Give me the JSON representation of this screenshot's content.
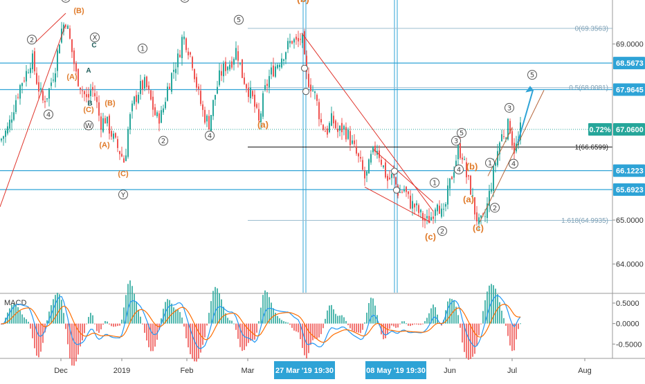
{
  "chart_data": [
    {
      "type": "candlestick",
      "title": "",
      "y_axis": {
        "ticks": [
          {
            "label": "69.0000",
            "v": 69.0
          },
          {
            "label": "65.0000",
            "v": 65.0
          },
          {
            "label": "64.0000",
            "v": 64.0
          }
        ],
        "ylim": [
          63.35,
          70.0
        ]
      },
      "x_axis": {
        "labels": [
          {
            "label": "Dec",
            "t": 88
          },
          {
            "label": "2019",
            "t": 176
          },
          {
            "label": "Feb",
            "t": 270
          },
          {
            "label": "Mar",
            "t": 358
          },
          {
            "label": "Jun",
            "t": 650
          },
          {
            "label": "Jul",
            "t": 740
          },
          {
            "label": "Aug",
            "t": 845
          }
        ],
        "highlighted": [
          {
            "label": "27 Mar '19   19:30",
            "t": 440
          },
          {
            "label": "08 May '19   19:30",
            "t": 572
          }
        ],
        "xlim": [
          0,
          885
        ]
      },
      "price_levels": [
        {
          "label": "68.5673",
          "v": 68.5673
        },
        {
          "label": "67.9645",
          "v": 67.9645
        },
        {
          "label": "66.1223",
          "v": 66.1223
        },
        {
          "label": "65.6923",
          "v": 65.6923
        }
      ],
      "current_price": {
        "label": "67.0600",
        "v": 67.06,
        "change": "0.72%"
      },
      "fib_levels": [
        {
          "label": "0(69.3563)",
          "v": 69.3563
        },
        {
          "label": "0.5(68.0081)",
          "v": 68.0081
        },
        {
          "label": "1(66.6599)",
          "v": 66.6599
        },
        {
          "label": "1.618(64.9935)",
          "v": 64.9935
        }
      ],
      "waves": {
        "circled": [
          {
            "label": "3",
            "t": 95,
            "v": 70.05
          },
          {
            "label": "2",
            "t": 46,
            "v": 69.1
          },
          {
            "label": "4",
            "t": 70,
            "v": 67.4
          },
          {
            "label": "X",
            "t": 137,
            "v": 69.15
          },
          {
            "label": "W",
            "t": 128,
            "v": 67.15
          },
          {
            "label": "Y",
            "t": 178,
            "v": 65.58
          },
          {
            "label": "1",
            "t": 206,
            "v": 68.9
          },
          {
            "label": "2",
            "t": 236,
            "v": 66.8
          },
          {
            "label": "3",
            "t": 267,
            "v": 70.05
          },
          {
            "label": "4",
            "t": 303,
            "v": 66.92
          },
          {
            "label": "5",
            "t": 345,
            "v": 69.55
          },
          {
            "label": "1",
            "t": 628,
            "v": 65.85
          },
          {
            "label": "2",
            "t": 639,
            "v": 64.75
          },
          {
            "label": "3",
            "t": 659,
            "v": 66.8
          },
          {
            "label": "4",
            "t": 663,
            "v": 66.15
          },
          {
            "label": "5",
            "t": 667,
            "v": 66.98
          },
          {
            "label": "1",
            "t": 708,
            "v": 66.3
          },
          {
            "label": "2",
            "t": 715,
            "v": 65.28
          },
          {
            "label": "3",
            "t": 736,
            "v": 67.55
          },
          {
            "label": "4",
            "t": 742,
            "v": 66.28
          },
          {
            "label": "5",
            "t": 769,
            "v": 68.3
          }
        ],
        "orange": [
          {
            "label": "(b)",
            "t": 438,
            "v": 69.95,
            "size": 14
          },
          {
            "label": "(B)",
            "t": 114,
            "v": 69.7,
            "size": 11
          },
          {
            "label": "(A)",
            "t": 104,
            "v": 68.2,
            "size": 11
          },
          {
            "label": "(B)",
            "t": 159,
            "v": 67.6,
            "size": 11
          },
          {
            "label": "(C)",
            "t": 128,
            "v": 67.45,
            "size": 11
          },
          {
            "label": "(A)",
            "t": 151,
            "v": 66.65,
            "size": 11
          },
          {
            "label": "(C)",
            "t": 178,
            "v": 66.0,
            "size": 11
          },
          {
            "label": "(a)",
            "t": 380,
            "v": 67.1,
            "size": 13
          },
          {
            "label": "(b)",
            "t": 682,
            "v": 66.15,
            "size": 13
          },
          {
            "label": "(a)",
            "t": 677,
            "v": 65.4,
            "size": 13
          },
          {
            "label": "(c)",
            "t": 622,
            "v": 64.55,
            "size": 13
          },
          {
            "label": "(c)",
            "t": 691,
            "v": 64.75,
            "size": 13
          }
        ],
        "green": [
          {
            "label": "C",
            "t": 136,
            "v": 68.92
          },
          {
            "label": "A",
            "t": 128,
            "v": 68.35
          },
          {
            "label": "B",
            "t": 130,
            "v": 67.6
          }
        ]
      },
      "macd": {
        "label": "MACD",
        "ticks": [
          {
            "label": "0.5000",
            "v": 0.5
          },
          {
            "label": "0.0000",
            "v": 0.0
          },
          {
            "label": "-0.5000",
            "v": -0.5
          }
        ],
        "ylim": [
          -0.85,
          0.72
        ]
      }
    }
  ]
}
